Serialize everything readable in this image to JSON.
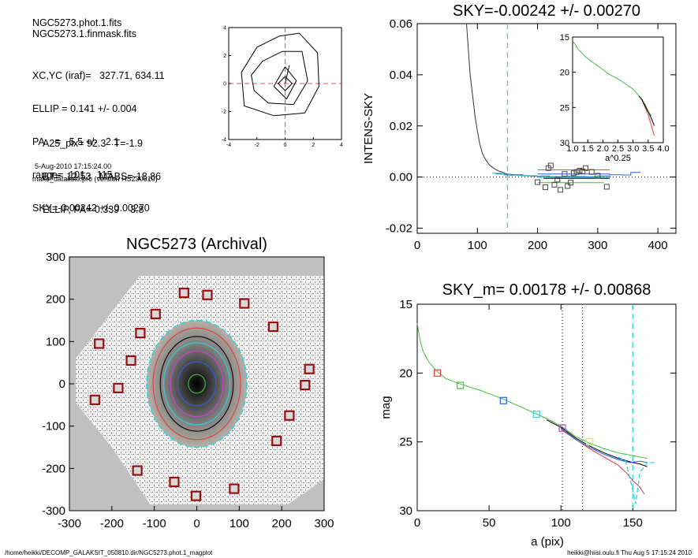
{
  "header": {
    "lines_a": [
      "NGC5273.phot.1.fits",
      "NGC5273.1.finmask.fits"
    ],
    "lines_b": [
      "XC,YC (iraf)=   327.71, 634.11",
      "ELLIP = 0.141 +/- 0.004",
      "PA    =   5.5 +/-   2.1",
      "range=  101.-  115.",
      "SKY=-0.00242 +/- 0.00270"
    ],
    "lines_c": [
      "A25_pix= 92.3   T=-1.9",
      "BT=  12.53   MABS=-18.86",
      "ELLIP, PA= 0.339    3.8"
    ],
    "date": "5-Aug-2010 17:15:24.00",
    "program": "make_datalist0.pro (version HS230610)"
  },
  "footer": {
    "left": "/home/heikki/DECOMP_GALAKSIT_050810.dir/NGC5273.phot.1_magplot",
    "right": "heikki@hiisi.oulu.fi  Thu Aug  5 17:15:24 2010"
  },
  "chart_data": [
    {
      "id": "contour-inset",
      "type": "line",
      "title": "",
      "xlim": [
        -4,
        4
      ],
      "ylim": [
        -4,
        4
      ],
      "xticks": [
        "-4",
        "-2",
        "0",
        "2",
        "4"
      ],
      "yticks": [
        "-4",
        "-2",
        "0",
        "2",
        "4"
      ],
      "series": [
        {
          "points": [
            [
              0,
              0.5
            ],
            [
              0.5,
              0
            ],
            [
              0,
              -0.5
            ],
            [
              -0.5,
              0
            ],
            [
              0,
              0.5
            ]
          ]
        },
        {
          "points": [
            [
              0,
              1.2
            ],
            [
              0.8,
              0.2
            ],
            [
              0.1,
              -1.1
            ],
            [
              -0.8,
              -0.2
            ],
            [
              0,
              1.2
            ]
          ]
        },
        {
          "points": [
            [
              -0.2,
              2.3
            ],
            [
              1.2,
              2.3
            ],
            [
              1.6,
              0.2
            ],
            [
              0.6,
              -1.5
            ],
            [
              -1.2,
              -1.4
            ],
            [
              -2.2,
              -0.5
            ],
            [
              -2.4,
              0.6
            ],
            [
              -1.6,
              1.6
            ],
            [
              -0.2,
              2.3
            ]
          ]
        },
        {
          "points": [
            [
              -0.4,
              3.4
            ],
            [
              1.0,
              3.6
            ],
            [
              2.3,
              2.2
            ],
            [
              2.4,
              -0.2
            ],
            [
              1.4,
              -2.1
            ],
            [
              -0.8,
              -2.3
            ],
            [
              -2.9,
              -1.6
            ],
            [
              -3.1,
              0.8
            ],
            [
              -2.0,
              2.6
            ],
            [
              -0.4,
              3.4
            ]
          ]
        }
      ],
      "crosshair": [
        0,
        0
      ],
      "colors": {
        "crosshair": "#e8534a"
      }
    },
    {
      "id": "intens-sky",
      "type": "line",
      "title": "SKY=-0.00242 +/- 0.00270",
      "xlabel": "",
      "ylabel": "INTENS-SKY",
      "xlim": [
        0,
        430
      ],
      "ylim": [
        -0.022,
        0.06
      ],
      "xticks": [
        0,
        100,
        200,
        300,
        400
      ],
      "yticks": [
        "-0.02",
        "0.00",
        "0.02",
        "0.04",
        "0.06"
      ],
      "vline": 150,
      "series": [
        {
          "name": "",
          "color": "#333333",
          "x": [
            82,
            85,
            88,
            92,
            96,
            100,
            104,
            108,
            112,
            116,
            120,
            125,
            130,
            135,
            140,
            145,
            150,
            160,
            170,
            180,
            200
          ],
          "y": [
            0.06,
            0.05,
            0.04,
            0.032,
            0.024,
            0.018,
            0.013,
            0.0095,
            0.0075,
            0.006,
            0.0048,
            0.0038,
            0.003,
            0.0024,
            0.002,
            0.0015,
            0.0012,
            0.0009,
            0.0007,
            0.0006,
            0.0004
          ]
        },
        {
          "name": "",
          "color": "#2a5ee8",
          "step": true,
          "x": [
            130,
            145,
            160,
            175,
            190,
            205,
            220,
            240,
            260,
            280,
            300,
            320,
            340,
            355,
            370
          ],
          "y": [
            0.0012,
            0.0008,
            0.0009,
            0.0005,
            0.0003,
            0.0004,
            0.0001,
            0.0003,
            0.0002,
            0.0001,
            0.0004,
            0.0009,
            0.0008,
            0.0018,
            0.0022
          ]
        },
        {
          "name": "",
          "color": "#2cb5b5",
          "step": true,
          "x": [
            125,
            140,
            155,
            170,
            185,
            200,
            215,
            230
          ],
          "y": [
            0.0015,
            0.0011,
            0.0007,
            0.0006,
            0.0004,
            0.0003,
            0.0002,
            0.0001
          ]
        }
      ],
      "sky_samples": {
        "x": [
          200,
          213,
          218,
          222,
          228,
          233,
          238,
          245,
          250,
          255,
          260,
          265,
          270,
          275,
          280,
          290,
          300,
          315
        ],
        "y": [
          -0.002,
          -0.004,
          0.0035,
          0.0045,
          -0.003,
          -0.001,
          -0.005,
          0.0012,
          -0.0035,
          -0.0022,
          0.0015,
          0.002,
          0.0025,
          0.0022,
          0.0035,
          0.002,
          0.0005,
          -0.0038
        ]
      },
      "sky_lines": [
        {
          "x": [
            200,
            320
          ],
          "y": 0.0028,
          "color": "#e05050"
        },
        {
          "x": [
            200,
            320
          ],
          "y": 0.0012,
          "color": "#2a5ee8"
        },
        {
          "x": [
            210,
            320
          ],
          "y": -0.0005,
          "color": "#000000"
        },
        {
          "x": [
            200,
            310
          ],
          "y": -0.0022,
          "color": "#3cc43c"
        },
        {
          "x": [
            200,
            320
          ],
          "y": -0.0001,
          "color": "#2cb5b5"
        }
      ],
      "inset": {
        "xlabel": "a^0.25",
        "xlim": [
          1.0,
          4.0
        ],
        "ylim": [
          15,
          30
        ],
        "xticks": [
          "1.0",
          "1.5",
          "2.0",
          "2.5",
          "3.0",
          "3.5",
          "4.0"
        ],
        "yticks": [
          "15",
          "20",
          "25",
          "30"
        ],
        "series": [
          {
            "color": "#3cc43c",
            "x": [
              1.0,
              1.2,
              1.4,
              1.6,
              1.8,
              2.0,
              2.2,
              2.4,
              2.6,
              2.8,
              3.0,
              3.2,
              3.4,
              3.5,
              3.6
            ],
            "y": [
              15.5,
              16.8,
              17.7,
              18.4,
              19.0,
              19.6,
              20.3,
              20.7,
              21.2,
              21.8,
              22.4,
              23.4,
              24.6,
              25.5,
              26.2
            ]
          },
          {
            "color": "#d84040",
            "x": [
              3.2,
              3.3,
              3.4,
              3.5,
              3.6,
              3.7
            ],
            "y": [
              23.4,
              24.0,
              25.0,
              26.0,
              27.5,
              29.0
            ]
          },
          {
            "color": "#000000",
            "x": [
              3.2,
              3.3,
              3.4,
              3.5,
              3.6,
              3.7
            ],
            "y": [
              23.4,
              23.9,
              24.8,
              25.6,
              26.5,
              27.6
            ]
          }
        ]
      },
      "colors": {
        "vline": "#2cd3e0",
        "zero": "#000000"
      }
    },
    {
      "id": "galaxy-image",
      "type": "scatter",
      "title": "NGC5273 (Archival)",
      "xlim": [
        -300,
        300
      ],
      "ylim": [
        -300,
        300
      ],
      "xticks": [
        "-300",
        "-200",
        "-100",
        "0",
        "100",
        "200",
        "300"
      ],
      "yticks": [
        "-300",
        "-200",
        "-100",
        "0",
        "100",
        "200",
        "300"
      ],
      "ellipses": [
        {
          "rx": 20,
          "ry": 22,
          "color": "#3cc43c"
        },
        {
          "rx": 45,
          "ry": 52,
          "color": "#2a5ee8"
        },
        {
          "rx": 62,
          "ry": 78,
          "color": "#d040d0"
        },
        {
          "rx": 78,
          "ry": 97,
          "color": "#2cd3e0"
        },
        {
          "rx": 86,
          "ry": 112,
          "color": "#000000"
        },
        {
          "rx": 103,
          "ry": 132,
          "color": "#d84040"
        },
        {
          "rx": 118,
          "ry": 150,
          "color": "#2cd3e0",
          "dashed": true
        }
      ],
      "sky_boxes": {
        "x": [
          -30,
          25,
          112,
          -155,
          -185,
          -97,
          -230,
          -240,
          -133,
          -53,
          -2,
          88,
          188,
          218,
          180,
          255,
          265,
          -140
        ],
        "y": [
          215,
          210,
          190,
          55,
          -10,
          165,
          95,
          -38,
          120,
          -232,
          -265,
          -248,
          -135,
          -75,
          135,
          -3,
          35,
          -205
        ]
      },
      "colors": {
        "background": "#c0c0c0",
        "box": "#9a1010"
      }
    },
    {
      "id": "mag-profile",
      "type": "line",
      "title": "SKY_m=  0.00178 +/- 0.00868",
      "xlabel": "a (pix)",
      "ylabel": "mag",
      "xlim": [
        0,
        180
      ],
      "ylim": [
        30,
        15
      ],
      "xticks": [
        0,
        50,
        100,
        150
      ],
      "yticks": [
        "15",
        "20",
        "25",
        "30"
      ],
      "vlines": [
        101,
        115
      ],
      "sky_vline": 150,
      "series": [
        {
          "name": "",
          "color": "#3cc43c",
          "x": [
            0,
            2,
            4,
            8,
            14,
            20,
            30,
            45,
            60,
            75,
            90,
            101,
            110,
            120,
            130,
            140,
            150,
            155,
            160
          ],
          "y": [
            16.4,
            17.6,
            18.4,
            19.2,
            19.9,
            20.4,
            20.8,
            21.3,
            21.9,
            22.6,
            23.3,
            23.9,
            24.6,
            25.1,
            25.5,
            25.8,
            26.0,
            26.1,
            26.2
          ]
        },
        {
          "name": "",
          "color": "#000000",
          "x": [
            90,
            101,
            110,
            120,
            130,
            140,
            150,
            155,
            160
          ],
          "y": [
            23.4,
            24.0,
            24.7,
            25.3,
            25.8,
            26.2,
            26.5,
            26.6,
            26.8
          ]
        },
        {
          "name": "",
          "color": "#d84040",
          "x": [
            100,
            110,
            120,
            130,
            140,
            145,
            150,
            155,
            158
          ],
          "y": [
            24.1,
            24.8,
            25.5,
            26.1,
            26.7,
            27.2,
            27.8,
            28.3,
            28.8
          ]
        },
        {
          "name": "",
          "color": "#2a5ee8",
          "x": [
            100,
            110,
            120,
            130,
            140,
            148,
            155,
            160
          ],
          "y": [
            24.0,
            24.8,
            25.4,
            25.9,
            26.3,
            26.5,
            26.4,
            26.5
          ]
        }
      ],
      "sky_curve": {
        "x": [
          140,
          145,
          150,
          152,
          155,
          160,
          165
        ],
        "y": [
          26.1,
          26.4,
          28.5,
          29.5,
          27.2,
          26.5,
          26.5
        ]
      },
      "markers": [
        {
          "x": 14,
          "y": 20.0,
          "color": "#d84040"
        },
        {
          "x": 30,
          "y": 20.9,
          "color": "#3cc43c"
        },
        {
          "x": 60,
          "y": 22.0,
          "color": "#2a5ee8"
        },
        {
          "x": 83,
          "y": 23.0,
          "color": "#2cd3e0"
        },
        {
          "x": 101,
          "y": 24.0,
          "color": "#d040d0"
        },
        {
          "x": 120,
          "y": 25.0,
          "color": "#e8e070"
        }
      ],
      "colors": {
        "sky": "#2cd3e0",
        "vlines": "#000000"
      }
    }
  ]
}
